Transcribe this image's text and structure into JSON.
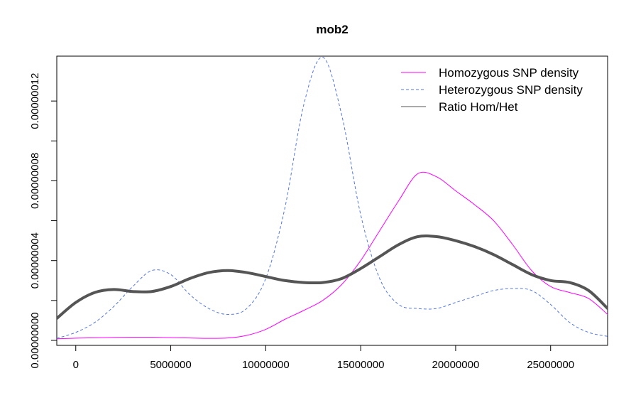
{
  "chart_data": {
    "type": "line",
    "title": "mob2",
    "xlabel": "",
    "ylabel": "",
    "xlim": [
      -1000000,
      28000000
    ],
    "ylim": [
      -2.5e-09,
      1.425e-07
    ],
    "x_ticks": [
      0,
      5000000,
      10000000,
      15000000,
      20000000,
      25000000
    ],
    "x_tick_labels": [
      "0",
      "5000000",
      "10000000",
      "15000000",
      "20000000",
      "25000000"
    ],
    "y_ticks": [
      0,
      4e-08,
      8e-08,
      1.2e-07
    ],
    "y_tick_labels": [
      "0.00000000",
      "0.00000004",
      "0.00000008",
      "0.00000012"
    ],
    "y_minor_ticks": [
      2e-08,
      6e-08,
      1e-07
    ],
    "grid": false,
    "legend_position": "top-right",
    "series": [
      {
        "name": "Homozygous SNP density",
        "color": "#ff00ff",
        "line_style": "solid",
        "line_width": 1,
        "x": [
          -1000000,
          0,
          1000000,
          2000000,
          3000000,
          4000000,
          5000000,
          6000000,
          7000000,
          8000000,
          9000000,
          10000000,
          11000000,
          12000000,
          13000000,
          14000000,
          15000000,
          16000000,
          17000000,
          18000000,
          19000000,
          20000000,
          21000000,
          22000000,
          23000000,
          24000000,
          25000000,
          26000000,
          27000000,
          28000000
        ],
        "y": [
          8e-10,
          1.1e-09,
          1.3e-09,
          1.5e-09,
          1.6e-09,
          1.6e-09,
          1.4e-09,
          1.2e-09,
          1e-09,
          1.2e-09,
          2.5e-09,
          5.5e-09,
          1.05e-08,
          1.5e-08,
          2e-08,
          2.8e-08,
          4e-08,
          5.5e-08,
          7e-08,
          8.35e-08,
          8.2e-08,
          7.5e-08,
          6.8e-08,
          6e-08,
          4.8e-08,
          3.5e-08,
          2.7e-08,
          2.4e-08,
          2.1e-08,
          1.3e-08
        ]
      },
      {
        "name": "Heterozygous SNP density",
        "color": "#5577dd",
        "line_style": "dashed",
        "line_width": 1,
        "x": [
          -1000000,
          0,
          1000000,
          2000000,
          3000000,
          4000000,
          5000000,
          6000000,
          7000000,
          8000000,
          9000000,
          10000000,
          11000000,
          12000000,
          13000000,
          14000000,
          15000000,
          16000000,
          17000000,
          18000000,
          19000000,
          20000000,
          21000000,
          22000000,
          23000000,
          24000000,
          25000000,
          26000000,
          27000000,
          28000000
        ],
        "y": [
          1e-09,
          4e-09,
          9e-09,
          1.7e-08,
          2.7e-08,
          3.5e-08,
          3.3e-08,
          2.3e-08,
          1.6e-08,
          1.3e-08,
          1.6e-08,
          3.1e-08,
          6.6e-08,
          1.18e-07,
          1.42e-07,
          1.13e-07,
          6.3e-08,
          3.1e-08,
          1.8e-08,
          1.6e-08,
          1.6e-08,
          1.9e-08,
          2.2e-08,
          2.5e-08,
          2.6e-08,
          2.5e-08,
          1.8e-08,
          9e-09,
          4e-09,
          2e-09
        ]
      },
      {
        "name": "Ratio Hom/Het",
        "color": "#555555",
        "line_style": "solid",
        "line_width": 4,
        "x": [
          -1000000,
          0,
          1000000,
          2000000,
          3000000,
          4000000,
          5000000,
          6000000,
          7000000,
          8000000,
          9000000,
          10000000,
          11000000,
          12000000,
          13000000,
          14000000,
          15000000,
          16000000,
          17000000,
          18000000,
          19000000,
          20000000,
          21000000,
          22000000,
          23000000,
          24000000,
          25000000,
          26000000,
          27000000,
          28000000
        ],
        "y": [
          1.1e-08,
          1.9e-08,
          2.4e-08,
          2.55e-08,
          2.45e-08,
          2.45e-08,
          2.7e-08,
          3.1e-08,
          3.4e-08,
          3.5e-08,
          3.4e-08,
          3.2e-08,
          3e-08,
          2.9e-08,
          2.9e-08,
          3.1e-08,
          3.6e-08,
          4.2e-08,
          4.8e-08,
          5.2e-08,
          5.2e-08,
          5e-08,
          4.7e-08,
          4.3e-08,
          3.8e-08,
          3.3e-08,
          3e-08,
          2.9e-08,
          2.5e-08,
          1.6e-08
        ]
      }
    ]
  }
}
